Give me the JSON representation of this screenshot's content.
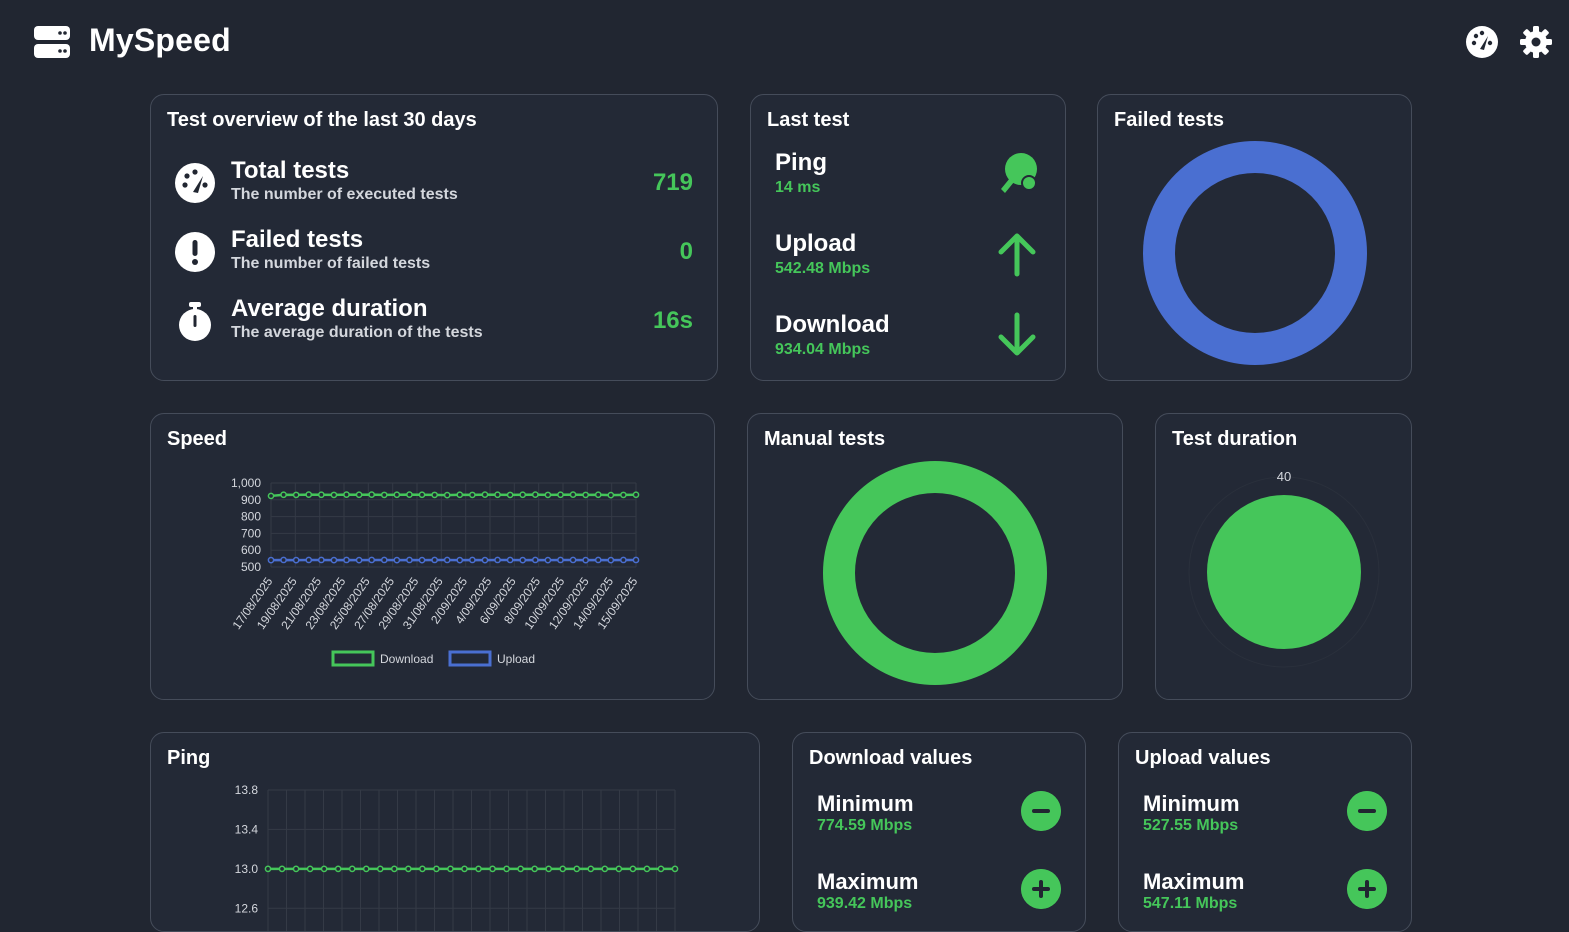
{
  "app": {
    "title": "MySpeed"
  },
  "header": {
    "icons": [
      "server-icon",
      "speedometer-icon",
      "gear-icon"
    ]
  },
  "overview": {
    "title": "Test overview of the last 30 days",
    "rows": [
      {
        "label": "Total tests",
        "sub": "The number of executed tests",
        "value": "719",
        "icon": "gauge-icon"
      },
      {
        "label": "Failed tests",
        "sub": "The number of failed tests",
        "value": "0",
        "icon": "exclamation-icon"
      },
      {
        "label": "Average duration",
        "sub": "The average duration of the tests",
        "value": "16s",
        "icon": "stopwatch-icon"
      }
    ]
  },
  "last_test": {
    "title": "Last test",
    "rows": [
      {
        "label": "Ping",
        "value": "14 ms",
        "icon": "ping-pong-icon"
      },
      {
        "label": "Upload",
        "value": "542.48 Mbps",
        "icon": "arrow-up-icon"
      },
      {
        "label": "Download",
        "value": "934.04 Mbps",
        "icon": "arrow-down-icon"
      }
    ]
  },
  "failed_tests": {
    "title": "Failed tests"
  },
  "manual_tests": {
    "title": "Manual tests"
  },
  "test_duration": {
    "title": "Test duration",
    "scale_label": "40"
  },
  "download_values": {
    "title": "Download values",
    "rows": [
      {
        "label": "Minimum",
        "value": "774.59 Mbps",
        "icon": "minus-icon"
      },
      {
        "label": "Maximum",
        "value": "939.42 Mbps",
        "icon": "plus-icon"
      }
    ]
  },
  "upload_values": {
    "title": "Upload values",
    "rows": [
      {
        "label": "Minimum",
        "value": "527.55 Mbps",
        "icon": "minus-icon"
      },
      {
        "label": "Maximum",
        "value": "547.11 Mbps",
        "icon": "plus-icon"
      }
    ]
  },
  "colors": {
    "accent": "#45c65a",
    "blue": "#4a6fd1",
    "bg": "#212631",
    "card": "#232936",
    "border": "#454c5a"
  },
  "chart_data": [
    {
      "type": "line",
      "title": "Speed",
      "x_tick_labels": [
        "17/08/2025",
        "19/08/2025",
        "21/08/2025",
        "23/08/2025",
        "25/08/2025",
        "27/08/2025",
        "29/08/2025",
        "31/08/2025",
        "2/09/2025",
        "4/09/2025",
        "6/09/2025",
        "8/09/2025",
        "10/09/2025",
        "12/09/2025",
        "14/09/2025",
        "15/09/2025"
      ],
      "point_count": 30,
      "ylim": [
        500,
        1000
      ],
      "yticks": [
        "500",
        "600",
        "700",
        "800",
        "900",
        "1,000"
      ],
      "series": [
        {
          "name": "Download",
          "color": "#45c65a",
          "values": [
            923,
            930,
            929,
            931,
            930,
            929,
            931,
            930,
            931,
            929,
            930,
            931,
            930,
            929,
            928,
            930,
            929,
            931,
            930,
            929,
            930,
            931,
            929,
            930,
            931,
            929,
            930,
            928,
            929,
            930
          ]
        },
        {
          "name": "Upload",
          "color": "#4a6fd1",
          "values": [
            541,
            542,
            541,
            542,
            542,
            541,
            542,
            541,
            542,
            542,
            541,
            542,
            541,
            542,
            542,
            541,
            542,
            541,
            542,
            542,
            541,
            542,
            541,
            542,
            542,
            541,
            542,
            541,
            542,
            542
          ]
        }
      ],
      "legend": "bottom",
      "grid": true
    },
    {
      "type": "line",
      "title": "Ping",
      "ylim": [
        12.4,
        13.8
      ],
      "yticks": [
        "12.6",
        "13.0",
        "13.4",
        "13.8"
      ],
      "point_count": 30,
      "series": [
        {
          "name": "Ping",
          "color": "#45c65a",
          "values": [
            13,
            13,
            13,
            13,
            13,
            13,
            13,
            13,
            13,
            13,
            13,
            13,
            13,
            13,
            13,
            13,
            13,
            13,
            13,
            13,
            13,
            13,
            13,
            13,
            13,
            13,
            13,
            13,
            13,
            13
          ]
        }
      ],
      "grid": true
    },
    {
      "type": "pie",
      "title": "Failed tests",
      "values": [
        719
      ],
      "colors": [
        "#4a6fd1"
      ]
    },
    {
      "type": "pie",
      "title": "Manual tests",
      "values": [
        719
      ],
      "colors": [
        "#45c65a"
      ]
    },
    {
      "type": "pie",
      "title": "Test duration",
      "values": [
        16
      ],
      "max": 40,
      "colors": [
        "#45c65a"
      ]
    }
  ]
}
